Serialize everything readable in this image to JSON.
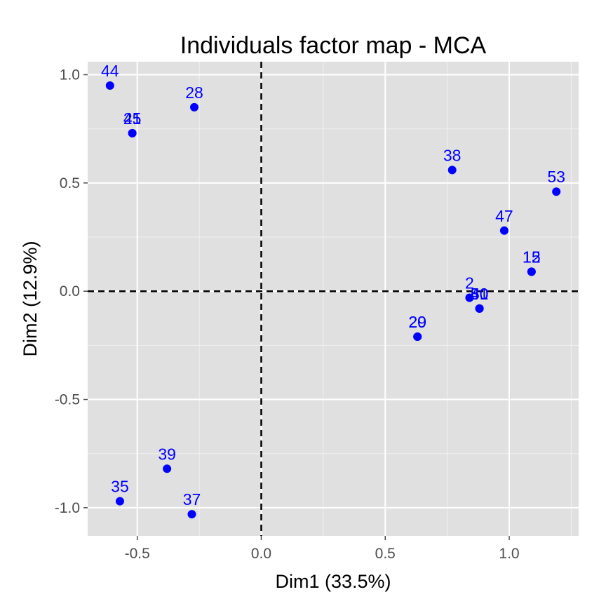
{
  "chart_data": {
    "type": "scatter",
    "title": "Individuals factor map - MCA",
    "xlabel": "Dim1 (33.5%)",
    "ylabel": "Dim2 (12.9%)",
    "xlim": [
      -0.7,
      1.28
    ],
    "ylim": [
      -1.13,
      1.06
    ],
    "x_ticks": [
      -0.5,
      0.0,
      0.5,
      1.0
    ],
    "x_tick_labels": [
      "-0.5",
      "0.0",
      "0.5",
      "1.0"
    ],
    "y_ticks": [
      -1.0,
      -0.5,
      0.0,
      0.5,
      1.0
    ],
    "y_tick_labels": [
      "-1.0",
      "-0.5",
      "0.0",
      "0.5",
      "1.0"
    ],
    "grid": true,
    "reference_lines": {
      "x": 0,
      "y": 0,
      "style": "dashed"
    },
    "point_color": "#0000ff",
    "panel_background": "#e0e0e0",
    "points": [
      {
        "label": "44",
        "x": -0.61,
        "y": 0.95
      },
      {
        "label": "28",
        "x": -0.27,
        "y": 0.85
      },
      {
        "label": "25",
        "x": -0.52,
        "y": 0.73
      },
      {
        "label": "41",
        "x": -0.52,
        "y": 0.73
      },
      {
        "label": "38",
        "x": 0.77,
        "y": 0.56
      },
      {
        "label": "53",
        "x": 1.19,
        "y": 0.46
      },
      {
        "label": "47",
        "x": 0.98,
        "y": 0.28
      },
      {
        "label": "12",
        "x": 1.09,
        "y": 0.09
      },
      {
        "label": "15",
        "x": 1.09,
        "y": 0.09
      },
      {
        "label": "2",
        "x": 0.84,
        "y": -0.03
      },
      {
        "label": "30",
        "x": 0.88,
        "y": -0.08
      },
      {
        "label": "51",
        "x": 0.88,
        "y": -0.08
      },
      {
        "label": "40",
        "x": 0.88,
        "y": -0.08
      },
      {
        "label": "20",
        "x": 0.63,
        "y": -0.21
      },
      {
        "label": "29",
        "x": 0.63,
        "y": -0.21
      },
      {
        "label": "39",
        "x": -0.38,
        "y": -0.82
      },
      {
        "label": "35",
        "x": -0.57,
        "y": -0.97
      },
      {
        "label": "37",
        "x": -0.28,
        "y": -1.03
      }
    ]
  }
}
